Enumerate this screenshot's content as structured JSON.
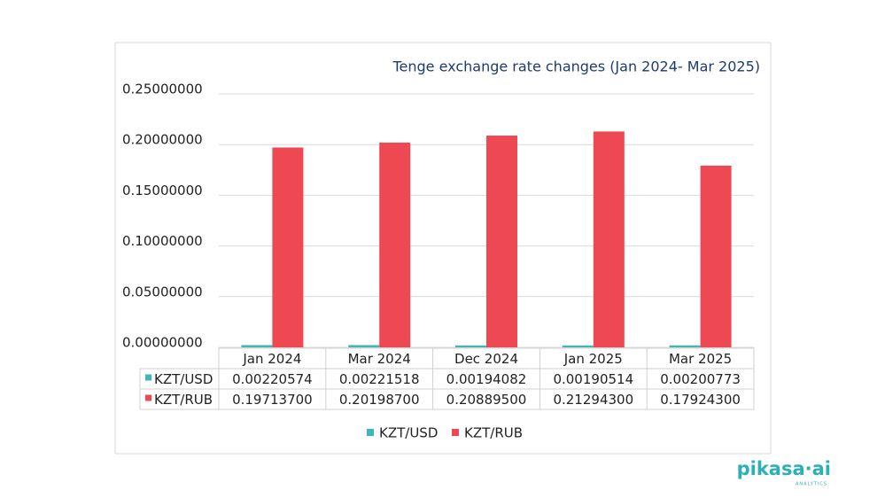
{
  "chart_data": {
    "type": "bar",
    "title": "Tenge exchange rate changes (Jan 2024- Mar 2025)",
    "categories": [
      "Jan 2024",
      "Mar 2024",
      "Dec 2024",
      "Jan 2025",
      "Mar 2025"
    ],
    "series": [
      {
        "name": "KZT/USD",
        "color": "#3fb6b8",
        "values": [
          0.00220574,
          0.00221518,
          0.00194082,
          0.00190514,
          0.00200773
        ],
        "value_labels": [
          "0.00220574",
          "0.00221518",
          "0.00194082",
          "0.00190514",
          "0.00200773"
        ]
      },
      {
        "name": "KZT/RUB",
        "color": "#ee4853",
        "values": [
          0.197137,
          0.201987,
          0.208895,
          0.212943,
          0.179243
        ],
        "value_labels": [
          "0.19713700",
          "0.20198700",
          "0.20889500",
          "0.21294300",
          "0.17924300"
        ]
      }
    ],
    "ylim": [
      0,
      0.25
    ],
    "yticks": [
      {
        "value": 0,
        "label": "0.00000000"
      },
      {
        "value": 0.05,
        "label": "0.05000000"
      },
      {
        "value": 0.1,
        "label": "0.10000000"
      },
      {
        "value": 0.15,
        "label": "0.15000000"
      },
      {
        "value": 0.2,
        "label": "0.20000000"
      },
      {
        "value": 0.25,
        "label": "0.25000000"
      }
    ],
    "grid": true
  },
  "logo": {
    "name": "pikasa·ai",
    "tagline": "ANALYTICS"
  }
}
